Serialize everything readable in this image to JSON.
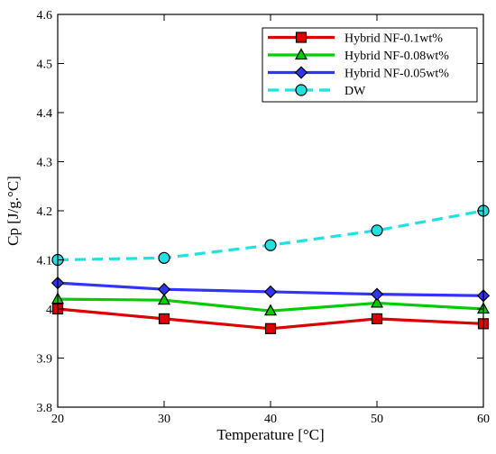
{
  "chart_data": {
    "type": "line",
    "title": "",
    "xlabel": "Temperature [°C]",
    "ylabel": "Cp [J/g.°C]",
    "xlim": [
      20,
      60
    ],
    "ylim": [
      3.8,
      4.6
    ],
    "x": [
      20,
      30,
      40,
      50,
      60
    ],
    "x_ticks": [
      "20",
      "30",
      "40",
      "50",
      "60"
    ],
    "y_ticks": [
      "3.8",
      "3.9",
      "4",
      "4.1",
      "4.2",
      "4.3",
      "4.4",
      "4.5",
      "4.6"
    ],
    "grid": false,
    "legend_position": "top-right",
    "series": [
      {
        "name": "Hybrid NF-0.1wt%",
        "values": [
          4.0,
          3.98,
          3.96,
          3.98,
          3.97
        ],
        "color": "#dd0000",
        "marker": "square",
        "line": "solid"
      },
      {
        "name": "Hybrid NF-0.08wt%",
        "values": [
          4.02,
          4.018,
          3.996,
          4.012,
          4.0
        ],
        "color": "#00cc00",
        "marker": "triangle",
        "line": "solid"
      },
      {
        "name": "Hybrid NF-0.05wt%",
        "values": [
          4.053,
          4.04,
          4.035,
          4.03,
          4.027
        ],
        "color": "#3333ff",
        "marker": "diamond",
        "line": "solid"
      },
      {
        "name": "DW",
        "values": [
          4.1,
          4.104,
          4.13,
          4.16,
          4.2
        ],
        "color": "#22e0e0",
        "marker": "circle",
        "line": "dashed"
      }
    ]
  }
}
